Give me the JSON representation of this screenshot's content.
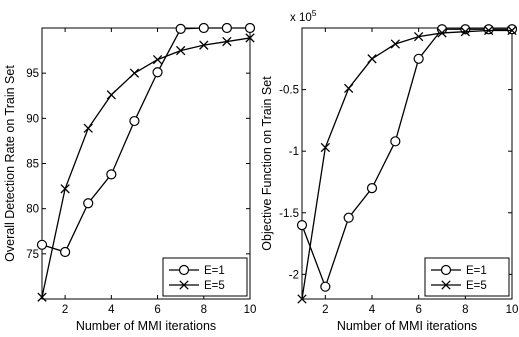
{
  "chart_data": [
    {
      "type": "line",
      "xlabel": "Number of MMI iterations",
      "ylabel": "Overall Detection Rate on Train Set",
      "xlim": [
        1,
        10
      ],
      "ylim": [
        70,
        100
      ],
      "xticks": [
        2,
        4,
        6,
        8,
        10
      ],
      "yticks": [
        75,
        80,
        85,
        90,
        95
      ],
      "x": [
        1,
        2,
        3,
        4,
        5,
        6,
        7,
        8,
        9,
        10
      ],
      "series": [
        {
          "name": "E=1",
          "marker": "circle",
          "values": [
            76.0,
            75.2,
            80.6,
            83.8,
            89.7,
            95.1,
            99.9,
            100.0,
            100.0,
            100.0
          ]
        },
        {
          "name": "E=5",
          "marker": "x",
          "values": [
            70.2,
            82.2,
            88.9,
            92.6,
            95.0,
            96.5,
            97.5,
            98.1,
            98.5,
            98.9
          ]
        }
      ],
      "legend": "bottom-right",
      "grid": false
    },
    {
      "type": "line",
      "xlabel": "Number of MMI iterations",
      "ylabel": "Objective Function on Train Set",
      "xlim": [
        1,
        10
      ],
      "ylim": [
        -2.2,
        0
      ],
      "scale_label": "x 10",
      "scale_exp": "5",
      "xticks": [
        2,
        4,
        6,
        8,
        10
      ],
      "yticks": [
        -0.5,
        -1,
        -1.5,
        -2
      ],
      "x": [
        1,
        2,
        3,
        4,
        5,
        6,
        7,
        8,
        9,
        10
      ],
      "series": [
        {
          "name": "E=1",
          "marker": "circle",
          "values": [
            -1.6,
            -2.1,
            -1.54,
            -1.3,
            -0.92,
            -0.25,
            -0.01,
            -0.01,
            -0.01,
            -0.01
          ]
        },
        {
          "name": "E=5",
          "marker": "x",
          "values": [
            -2.2,
            -0.97,
            -0.49,
            -0.25,
            -0.13,
            -0.07,
            -0.04,
            -0.03,
            -0.02,
            -0.02
          ]
        }
      ],
      "legend": "bottom-right",
      "grid": false
    }
  ]
}
